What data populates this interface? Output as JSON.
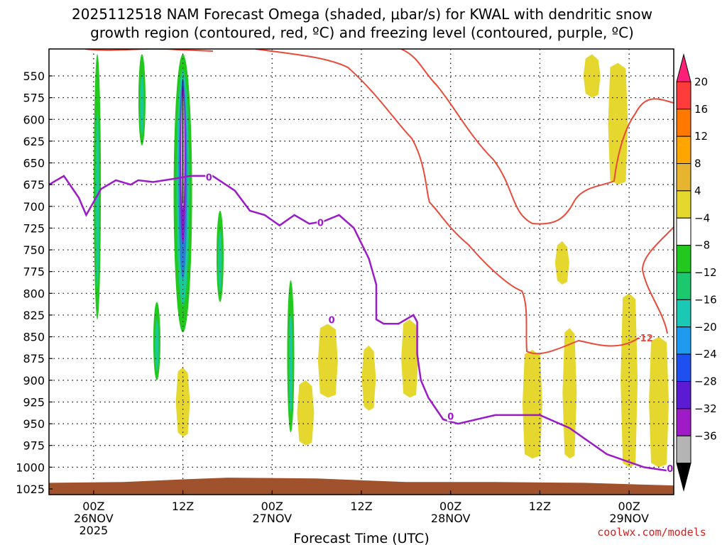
{
  "title_line1": "2025112518 NAM Forecast Omega (shaded, μbar/s) for KWAL with dendritic snow",
  "title_line2": "growth region (contoured, red, ºC) and freezing level (contoured, purple, ºC)",
  "credit": "coolwx.com/models",
  "colors": {
    "omega_fill": "#e6d72f",
    "omega_neg_light": "#22c81e",
    "omega_neg_mid": "#1bc89a",
    "omega_neg_blue": "#2d7dd2",
    "omega_neg_purple": "#8a1bc8",
    "omega_neg_grey": "#b4b4b4",
    "dgz_contour": "#e84b3a",
    "freezing_contour": "#9b1bc9",
    "terrain": "#a0522d"
  },
  "chart_data": {
    "type": "time-height cross section",
    "xlabel": "Forecast Time (UTC)",
    "x_ticks": [
      {
        "label": "00Z",
        "sub1": "26NOV",
        "sub2": "2025",
        "hour": 6
      },
      {
        "label": "12Z",
        "sub1": "",
        "sub2": "",
        "hour": 18
      },
      {
        "label": "00Z",
        "sub1": "27NOV",
        "sub2": "",
        "hour": 30
      },
      {
        "label": "12Z",
        "sub1": "",
        "sub2": "",
        "hour": 42
      },
      {
        "label": "00Z",
        "sub1": "28NOV",
        "sub2": "",
        "hour": 54
      },
      {
        "label": "12Z",
        "sub1": "",
        "sub2": "",
        "hour": 66
      },
      {
        "label": "00Z",
        "sub1": "29NOV",
        "sub2": "",
        "hour": 78
      }
    ],
    "xlim": [
      0,
      84
    ],
    "ylabel": "",
    "y_ticks": [
      550,
      575,
      600,
      625,
      650,
      675,
      700,
      725,
      750,
      775,
      800,
      825,
      850,
      875,
      900,
      925,
      950,
      975,
      1000,
      1025
    ],
    "ylim": [
      1035,
      525
    ],
    "colorbar": {
      "labels": [
        "20",
        "16",
        "12",
        "8",
        "4",
        "−4",
        "−8",
        "−12",
        "−16",
        "−20",
        "−24",
        "−28",
        "−32",
        "−36"
      ],
      "bands": [
        "#ff1e78",
        "#ff3c3c",
        "#ff7800",
        "#ffa500",
        "#e6b42f",
        "#e6d72f",
        "#ffffff",
        "#22c81e",
        "#1bc86e",
        "#1bc8b4",
        "#1e9bf0",
        "#1e50f0",
        "#5a1bd2",
        "#a01bc8",
        "#b4b4b4",
        "#000000"
      ]
    },
    "contour_labels": {
      "freezing": [
        "0",
        "0",
        "0",
        "0",
        "0"
      ],
      "dgz": "-12"
    },
    "freezing_level_0C": [
      [
        0,
        675
      ],
      [
        2,
        665
      ],
      [
        4,
        690
      ],
      [
        5,
        710
      ],
      [
        7,
        680
      ],
      [
        9,
        670
      ],
      [
        11,
        675
      ],
      [
        12,
        670
      ],
      [
        14,
        672
      ],
      [
        17,
        668
      ],
      [
        19,
        665
      ],
      [
        22,
        665
      ],
      [
        25,
        682
      ],
      [
        27,
        705
      ],
      [
        29,
        710
      ],
      [
        31,
        722
      ],
      [
        33,
        710
      ],
      [
        35,
        720
      ],
      [
        37,
        717
      ],
      [
        39,
        710
      ],
      [
        41,
        725
      ],
      [
        43,
        760
      ],
      [
        44,
        790
      ],
      [
        44,
        830
      ],
      [
        45,
        835
      ],
      [
        47,
        835
      ],
      [
        49,
        825
      ],
      [
        49.5,
        833
      ],
      [
        49.5,
        870
      ],
      [
        50,
        900
      ],
      [
        51,
        920
      ],
      [
        53,
        945
      ],
      [
        55,
        950
      ],
      [
        60,
        940
      ],
      [
        66,
        940
      ],
      [
        70,
        955
      ],
      [
        75,
        985
      ],
      [
        80,
        1000
      ],
      [
        84,
        1005
      ]
    ],
    "omega_features": [
      {
        "hour": 6.5,
        "p_top": 525,
        "p_bot": 830,
        "kind": "green"
      },
      {
        "hour": 12.5,
        "p_top": 525,
        "p_bot": 630,
        "kind": "green"
      },
      {
        "hour": 14.5,
        "p_top": 810,
        "p_bot": 900,
        "kind": "green"
      },
      {
        "hour": 18.0,
        "p_top": 525,
        "p_bot": 845,
        "kind": "core"
      },
      {
        "hour": 23.0,
        "p_top": 705,
        "p_bot": 810,
        "kind": "green"
      },
      {
        "hour": 32.5,
        "p_top": 785,
        "p_bot": 960,
        "kind": "green"
      },
      {
        "hour": 18.0,
        "p_top": 885,
        "p_bot": 965,
        "kind": "yellow"
      },
      {
        "hour": 34.5,
        "p_top": 900,
        "p_bot": 975,
        "kind": "yellow"
      },
      {
        "hour": 37.5,
        "p_top": 835,
        "p_bot": 920,
        "kind": "yellow"
      },
      {
        "hour": 43.0,
        "p_top": 860,
        "p_bot": 935,
        "kind": "yellow"
      },
      {
        "hour": 48.5,
        "p_top": 830,
        "p_bot": 920,
        "kind": "yellow"
      },
      {
        "hour": 65.0,
        "p_top": 865,
        "p_bot": 990,
        "kind": "yellow"
      },
      {
        "hour": 70.0,
        "p_top": 840,
        "p_bot": 990,
        "kind": "yellow"
      },
      {
        "hour": 73.0,
        "p_top": 525,
        "p_bot": 575,
        "kind": "yellow"
      },
      {
        "hour": 76.5,
        "p_top": 535,
        "p_bot": 675,
        "kind": "yellow"
      },
      {
        "hour": 69.0,
        "p_top": 740,
        "p_bot": 790,
        "kind": "yellow"
      },
      {
        "hour": 78.0,
        "p_top": 800,
        "p_bot": 1000,
        "kind": "yellow"
      },
      {
        "hour": 82.0,
        "p_top": 850,
        "p_bot": 1000,
        "kind": "yellow"
      }
    ]
  }
}
